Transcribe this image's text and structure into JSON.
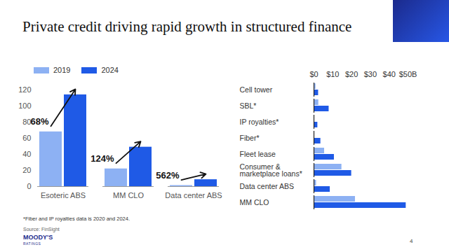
{
  "slide": {
    "title": "Private credit driving rapid growth in structured finance",
    "footnote": "*Fiber and IP royalties data is 2020 and 2024.",
    "source": "Source: FinSight",
    "logo": [
      "MOODY'S",
      "RATINGS"
    ],
    "page": "4"
  },
  "chart_data": [
    {
      "type": "bar",
      "categories": [
        "Esoteric ABS",
        "MM CLO",
        "Data center ABS"
      ],
      "series": [
        {
          "name": "2019",
          "color": "#8db1f3",
          "values": [
            68,
            22,
            1.3
          ]
        },
        {
          "name": "2024",
          "color": "#1f5ae6",
          "values": [
            114,
            49,
            8.6
          ]
        }
      ],
      "ylim": [
        0,
        120
      ],
      "yticks": [
        0,
        20,
        40,
        60,
        80,
        100,
        120
      ],
      "legend": "top",
      "annotations": [
        {
          "category": "Esoteric ABS",
          "text": "68%"
        },
        {
          "category": "MM CLO",
          "text": "124%"
        },
        {
          "category": "Data center ABS",
          "text": "562%"
        }
      ]
    },
    {
      "type": "bar",
      "orientation": "horizontal",
      "categories": [
        "Cell tower",
        "SBL*",
        "IP royalties*",
        "Fiber*",
        "Fleet lease",
        "Consumer & marketplace loans*",
        "Data center ABS",
        "MM CLO"
      ],
      "series": [
        {
          "name": "2019",
          "color": "#8db1f3",
          "values": [
            1,
            2.5,
            0.2,
            0.3,
            5.6,
            14.8,
            1.3,
            22
          ]
        },
        {
          "name": "2024",
          "color": "#1f5ae6",
          "values": [
            2.4,
            8,
            2,
            3.6,
            10.8,
            20,
            8.6,
            49
          ]
        }
      ],
      "xlim": [
        0,
        50
      ],
      "xticks": [
        {
          "value": 0,
          "label": "$0"
        },
        {
          "value": 10,
          "label": "$10"
        },
        {
          "value": 20,
          "label": "$20"
        },
        {
          "value": 30,
          "label": "$30"
        },
        {
          "value": 40,
          "label": "$40"
        },
        {
          "value": 50,
          "label": "$50B"
        }
      ]
    }
  ]
}
